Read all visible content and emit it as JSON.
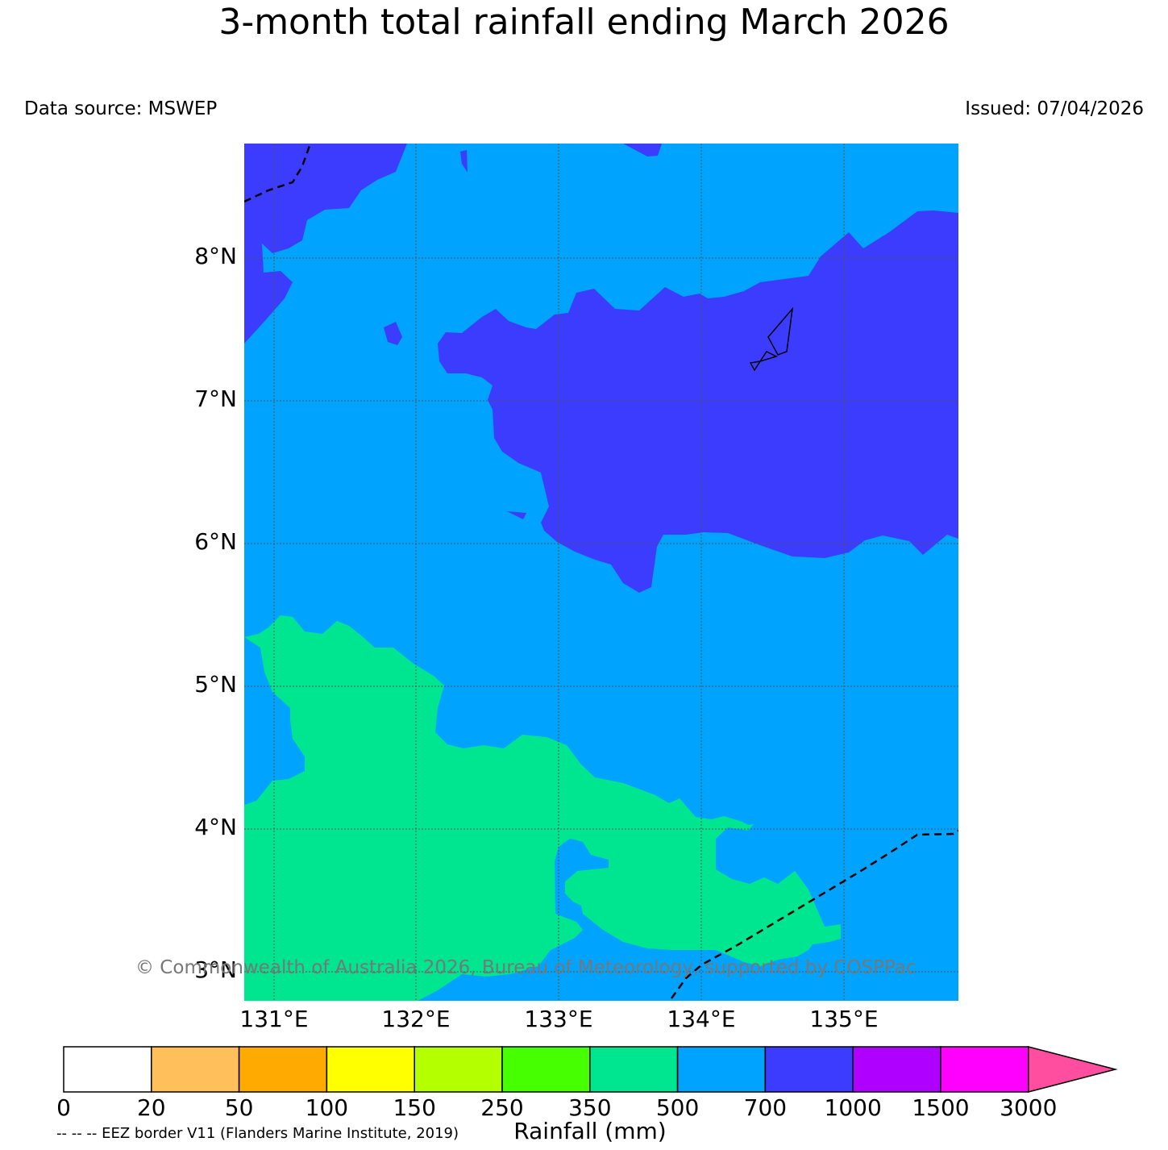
{
  "title": "3-month total rainfall ending March 2026",
  "data_source": "Data source: MSWEP",
  "issued": "Issued: 07/04/2026",
  "latitude_labels": [
    "8°N",
    "7°N",
    "6°N",
    "5°N",
    "4°N",
    "3°N"
  ],
  "longitude_labels": [
    "131°E",
    "132°E",
    "133°E",
    "134°E",
    "135°E"
  ],
  "copyright": "© Commonwealth of Australia 2026, Bureau of Meteorology, supported by COSPPac",
  "eez_note": "-- -- -- EEZ border V11 (Flanders Marine Institute, 2019)",
  "colorbar": {
    "label": "Rainfall (mm)",
    "ticks": [
      "0",
      "20",
      "50",
      "100",
      "150",
      "250",
      "350",
      "500",
      "700",
      "1000",
      "1500",
      "3000"
    ],
    "colors": [
      "#ffffff",
      "#ffbf5a",
      "#ffaa00",
      "#ffff00",
      "#b4ff00",
      "#46ff00",
      "#00e590",
      "#00a4ff",
      "#3c3cff",
      "#af00ff",
      "#ff00ff",
      "#ff4da0"
    ]
  },
  "map_colors": {
    "band_350_500": "#00e590",
    "band_500_700": "#00a4ff",
    "band_700_1000": "#3c3cff"
  }
}
